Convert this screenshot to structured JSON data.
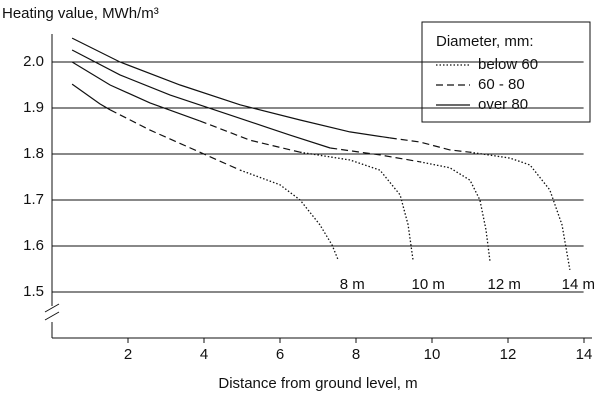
{
  "chart_data": {
    "type": "line",
    "y_label": "Heating value, MWh/m³",
    "x_label": "Distance from ground level, m",
    "xlim": [
      0,
      14.2
    ],
    "xticks": [
      2,
      4,
      6,
      8,
      10,
      12,
      14
    ],
    "ylim": [
      1.4,
      2.06
    ],
    "yticks": [
      {
        "value": 2,
        "label": "2.0"
      },
      1.9,
      1.7,
      1.8,
      1.6,
      1.5
    ],
    "grid": true,
    "legend_title": "Diameter, mm:",
    "legend_position": "upper right",
    "series": [
      {
        "name": "below 60",
        "color": "#111111",
        "dash": "dotted",
        "x": [
          4.95,
          6.0,
          6.53,
          7.05,
          7.37,
          7.53,
          null,
          6.53,
          7.84,
          8.63,
          9.16,
          9.37,
          9.5,
          null,
          9.68,
          10.47,
          11.0,
          11.26,
          11.42,
          11.53,
          null,
          11.0,
          12.05,
          12.58,
          13.1,
          13.42,
          13.63
        ],
        "values": [
          1.765,
          1.733,
          1.7,
          1.646,
          1.602,
          1.57,
          null,
          1.804,
          1.787,
          1.765,
          1.711,
          1.646,
          1.57,
          null,
          1.783,
          1.77,
          1.743,
          1.7,
          1.635,
          1.565,
          null,
          1.804,
          1.791,
          1.776,
          1.722,
          1.646,
          1.548
        ]
      },
      {
        "name": "60 - 80",
        "color": "#111111",
        "dash": "dashed",
        "x": [
          1.53,
          2.58,
          3.89,
          4.95,
          null,
          3.89,
          5.21,
          6.53,
          null,
          7.32,
          8.63,
          9.68,
          null,
          8.89,
          9.68,
          10.47,
          11.0
        ],
        "values": [
          1.896,
          1.852,
          1.804,
          1.765,
          null,
          1.872,
          1.83,
          1.804,
          null,
          1.813,
          1.798,
          1.783,
          null,
          1.835,
          1.826,
          1.809,
          1.804
        ]
      },
      {
        "name": "over 80",
        "color": "#111111",
        "dash": "solid",
        "x": [
          0.53,
          1.26,
          1.53,
          null,
          0.53,
          1.53,
          2.58,
          3.89,
          null,
          0.53,
          1.79,
          3.11,
          4.68,
          6.26,
          7.32,
          null,
          0.53,
          1.79,
          3.37,
          4.95,
          6.53,
          7.84,
          8.89
        ],
        "values": [
          1.952,
          1.909,
          1.896,
          null,
          2.0,
          1.95,
          1.911,
          1.872,
          null,
          2.026,
          1.972,
          1.928,
          1.885,
          1.841,
          1.813,
          null,
          2.052,
          2.0,
          1.95,
          1.907,
          1.874,
          1.848,
          1.835
        ]
      }
    ],
    "annotations": [
      {
        "text": "8 m",
        "x": 7.9,
        "y": 1.515
      },
      {
        "text": "10 m",
        "x": 9.9,
        "y": 1.515
      },
      {
        "text": "12 m",
        "x": 11.9,
        "y": 1.515
      },
      {
        "text": "14 m",
        "x": 13.85,
        "y": 1.515
      }
    ]
  }
}
